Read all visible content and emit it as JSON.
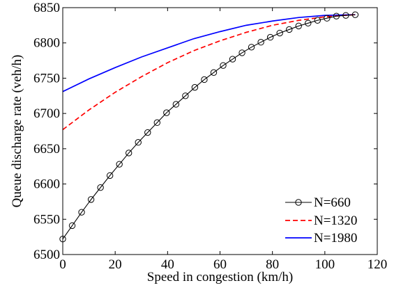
{
  "chart_data": {
    "type": "line",
    "title": "",
    "xlabel": "Speed in congestion (km/h)",
    "ylabel": "Queue discharge rate (veh/h)",
    "xlim": [
      0,
      120
    ],
    "ylim": [
      6500,
      6850
    ],
    "xticks": [
      0,
      20,
      40,
      60,
      80,
      100,
      120
    ],
    "yticks": [
      6500,
      6550,
      6600,
      6650,
      6700,
      6750,
      6800,
      6850
    ],
    "grid": false,
    "legend_position": "bottom-right",
    "series": [
      {
        "name": "N=660",
        "color": "#000000",
        "line_style": "solid",
        "marker": "circle",
        "points": [
          [
            0,
            6522
          ],
          [
            3.6,
            6541
          ],
          [
            7.2,
            6560
          ],
          [
            10.8,
            6578
          ],
          [
            14.4,
            6595
          ],
          [
            18,
            6612
          ],
          [
            21.6,
            6628
          ],
          [
            25.2,
            6644
          ],
          [
            28.8,
            6659
          ],
          [
            32.4,
            6673
          ],
          [
            36,
            6687
          ],
          [
            39.6,
            6701
          ],
          [
            43.2,
            6713
          ],
          [
            46.8,
            6725
          ],
          [
            50.4,
            6737
          ],
          [
            54,
            6748
          ],
          [
            57.6,
            6758
          ],
          [
            61.2,
            6768
          ],
          [
            64.8,
            6777
          ],
          [
            68.4,
            6786
          ],
          [
            72,
            6794
          ],
          [
            75.6,
            6801
          ],
          [
            79.2,
            6808
          ],
          [
            82.8,
            6814
          ],
          [
            86.4,
            6819
          ],
          [
            90,
            6824
          ],
          [
            93.6,
            6828
          ],
          [
            97.2,
            6832
          ],
          [
            100.8,
            6835
          ],
          [
            104.4,
            6838
          ],
          [
            108,
            6839
          ],
          [
            111.6,
            6840
          ]
        ]
      },
      {
        "name": "N=1320",
        "color": "#ff0000",
        "line_style": "dashed",
        "marker": "none",
        "points": [
          [
            0,
            6677
          ],
          [
            10,
            6705
          ],
          [
            20,
            6730
          ],
          [
            30,
            6752
          ],
          [
            40,
            6772
          ],
          [
            50,
            6789
          ],
          [
            60,
            6803
          ],
          [
            70,
            6815
          ],
          [
            80,
            6825
          ],
          [
            90,
            6832
          ],
          [
            100,
            6837
          ],
          [
            111.6,
            6840
          ]
        ]
      },
      {
        "name": "N=1980",
        "color": "#0000ff",
        "line_style": "solid",
        "marker": "none",
        "points": [
          [
            0,
            6731
          ],
          [
            10,
            6749
          ],
          [
            20,
            6765
          ],
          [
            30,
            6780
          ],
          [
            40,
            6793
          ],
          [
            50,
            6806
          ],
          [
            60,
            6816
          ],
          [
            70,
            6825
          ],
          [
            80,
            6831
          ],
          [
            90,
            6836
          ],
          [
            100,
            6839
          ],
          [
            111.6,
            6840
          ]
        ]
      }
    ]
  }
}
